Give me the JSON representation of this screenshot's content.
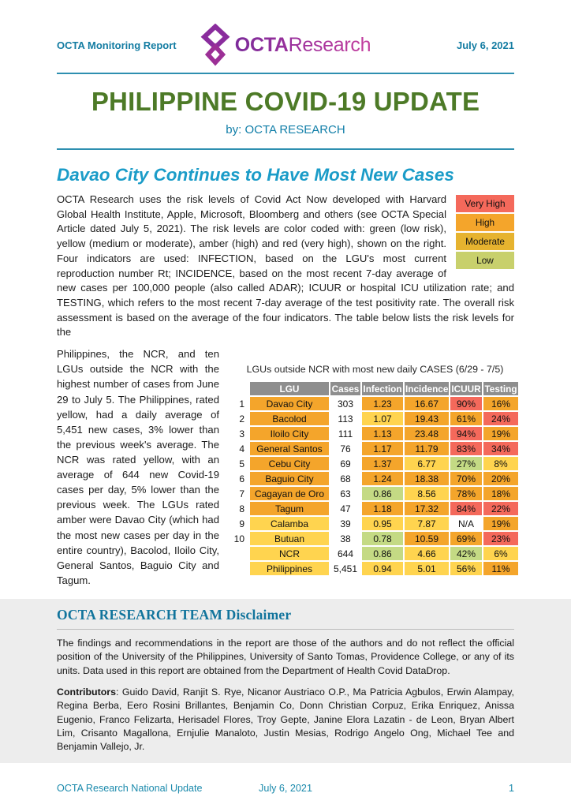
{
  "header": {
    "report_label": "OCTA Monitoring Report",
    "date": "July 6, 2021",
    "logo_text_bold": "OCTA",
    "logo_text_light": "Research"
  },
  "masthead": {
    "title": "PHILIPPINE COVID-19 UPDATE",
    "byline": "by: OCTA RESEARCH"
  },
  "article": {
    "heading": "Davao City Continues to Have Most New Cases",
    "intro": "OCTA Research uses the risk levels of Covid Act Now developed with Harvard Global Health Institute, Apple, Microsoft, Bloomberg and others (see OCTA Special Article dated July 5, 2021). The risk levels are color coded with: green (low risk), yellow (medium or moderate), amber (high) and red (very high), shown on the right. Four indicators are used: INFECTION, based on the LGU's most current reproduction number Rt; INCIDENCE, based on the most recent 7-day average of new cases per 100,000 people (also called ADAR); ICUUR or hospital ICU utilization rate; and TESTING, which refers to the most recent 7-day average of the test positivity rate. The overall risk assessment is based on the average of the four indicators. The table below lists the risk levels for the",
    "left_column": "Philippines, the NCR, and ten LGUs outside the NCR with the highest number of cases from June 29 to July 5. The Philippines, rated yellow, had a daily average of 5,451 new cases, 3% lower than the previous week's average. The NCR was rated yellow, with an average of 644 new Covid-19 cases per day, 5% lower than the previous week. The LGUs rated amber were Davao City (which had the most new cases per day in the entire country), Bacolod, Iloilo City, General Santos, Baguio City and Tagum."
  },
  "colors": {
    "red": "#f4695b",
    "amber": "#f4a52b",
    "moderate": "#e6b32f",
    "yellow": "#ffd44f",
    "low": "#c8d06c",
    "green": "#c4da84",
    "white": "#ffffff",
    "teal": "#137ca2",
    "title_green": "#4d7a27",
    "heading_cyan": "#1b9cc8",
    "table_header_gray": "#8e8e8e"
  },
  "risk_legend": {
    "items": [
      {
        "label": "Very High",
        "color_key": "red"
      },
      {
        "label": "High",
        "color_key": "amber"
      },
      {
        "label": "Moderate",
        "color_key": "moderate"
      },
      {
        "label": "Low",
        "color_key": "low"
      }
    ]
  },
  "table": {
    "title": "LGUs outside NCR with most new daily CASES (6/29 - 7/5)",
    "headers": [
      "LGU",
      "Cases",
      "Infection",
      "Incidence",
      "ICUUR",
      "Testing"
    ],
    "rows": [
      {
        "rank": "1",
        "lgu": "Davao City",
        "lgu_c": "amber",
        "cases": "303",
        "infection": "1.23",
        "infection_c": "amber",
        "incidence": "16.67",
        "incidence_c": "amber",
        "icuur": "90%",
        "icuur_c": "red",
        "testing": "16%",
        "testing_c": "amber"
      },
      {
        "rank": "2",
        "lgu": "Bacolod",
        "lgu_c": "amber",
        "cases": "113",
        "infection": "1.07",
        "infection_c": "yellow",
        "incidence": "19.43",
        "incidence_c": "amber",
        "icuur": "61%",
        "icuur_c": "amber",
        "testing": "24%",
        "testing_c": "red"
      },
      {
        "rank": "3",
        "lgu": "Iloilo City",
        "lgu_c": "amber",
        "cases": "111",
        "infection": "1.13",
        "infection_c": "amber",
        "incidence": "23.48",
        "incidence_c": "amber",
        "icuur": "94%",
        "icuur_c": "red",
        "testing": "19%",
        "testing_c": "amber"
      },
      {
        "rank": "4",
        "lgu": "General Santos",
        "lgu_c": "amber",
        "cases": "76",
        "infection": "1.17",
        "infection_c": "amber",
        "incidence": "11.79",
        "incidence_c": "amber",
        "icuur": "83%",
        "icuur_c": "red",
        "testing": "34%",
        "testing_c": "red"
      },
      {
        "rank": "5",
        "lgu": "Cebu City",
        "lgu_c": "amber",
        "cases": "69",
        "infection": "1.37",
        "infection_c": "amber",
        "incidence": "6.77",
        "incidence_c": "yellow",
        "icuur": "27%",
        "icuur_c": "green",
        "testing": "8%",
        "testing_c": "yellow"
      },
      {
        "rank": "6",
        "lgu": "Baguio City",
        "lgu_c": "amber",
        "cases": "68",
        "infection": "1.24",
        "infection_c": "amber",
        "incidence": "18.38",
        "incidence_c": "amber",
        "icuur": "70%",
        "icuur_c": "amber",
        "testing": "20%",
        "testing_c": "amber"
      },
      {
        "rank": "7",
        "lgu": "Cagayan de Oro",
        "lgu_c": "amber",
        "cases": "63",
        "infection": "0.86",
        "infection_c": "green",
        "incidence": "8.56",
        "incidence_c": "yellow",
        "icuur": "78%",
        "icuur_c": "amber",
        "testing": "18%",
        "testing_c": "amber"
      },
      {
        "rank": "8",
        "lgu": "Tagum",
        "lgu_c": "amber",
        "cases": "47",
        "infection": "1.18",
        "infection_c": "amber",
        "incidence": "17.32",
        "incidence_c": "amber",
        "icuur": "84%",
        "icuur_c": "red",
        "testing": "22%",
        "testing_c": "red"
      },
      {
        "rank": "9",
        "lgu": "Calamba",
        "lgu_c": "yellow",
        "cases": "39",
        "infection": "0.95",
        "infection_c": "yellow",
        "incidence": "7.87",
        "incidence_c": "yellow",
        "icuur": "N/A",
        "icuur_c": "white",
        "testing": "19%",
        "testing_c": "amber"
      },
      {
        "rank": "10",
        "lgu": "Butuan",
        "lgu_c": "yellow",
        "cases": "38",
        "infection": "0.78",
        "infection_c": "green",
        "incidence": "10.59",
        "incidence_c": "amber",
        "icuur": "69%",
        "icuur_c": "amber",
        "testing": "23%",
        "testing_c": "red"
      },
      {
        "rank": "",
        "lgu": "NCR",
        "lgu_c": "yellow",
        "cases": "644",
        "infection": "0.86",
        "infection_c": "green",
        "incidence": "4.66",
        "incidence_c": "yellow",
        "icuur": "42%",
        "icuur_c": "green",
        "testing": "6%",
        "testing_c": "yellow"
      },
      {
        "rank": "",
        "lgu": "Philippines",
        "lgu_c": "yellow",
        "cases": "5,451",
        "infection": "0.94",
        "infection_c": "yellow",
        "incidence": "5.01",
        "incidence_c": "yellow",
        "icuur": "56%",
        "icuur_c": "yellow",
        "testing": "11%",
        "testing_c": "amber"
      }
    ]
  },
  "disclaimer": {
    "heading": "OCTA RESEARCH TEAM Disclaimer",
    "body": "The findings and recommendations in the report are those of the authors and do not reflect the official position of the University of the Philippines, University of Santo Tomas, Providence College, or any of its units. Data used in this report are obtained from the Department of Health Covid DataDrop.",
    "contributors_label": "Contributors",
    "contributors": "Guido David, Ranjit S. Rye, Nicanor Austriaco O.P., Ma Patricia Agbulos, Erwin Alampay, Regina Berba, Eero Rosini Brillantes, Benjamin Co, Donn Christian Corpuz, Erika Enriquez, Anissa Eugenio, Franco Felizarta, Herisadel Flores, Troy Gepte, Janine Elora Lazatin - de Leon, Bryan Albert Lim, Crisanto Magallona, Ernjulie Manaloto, Justin Mesias, Rodrigo Angelo Ong, Michael Tee and Benjamin Vallejo, Jr."
  },
  "footer": {
    "left": "OCTA Research National Update",
    "center": "July 6, 2021",
    "page_number": "1"
  }
}
